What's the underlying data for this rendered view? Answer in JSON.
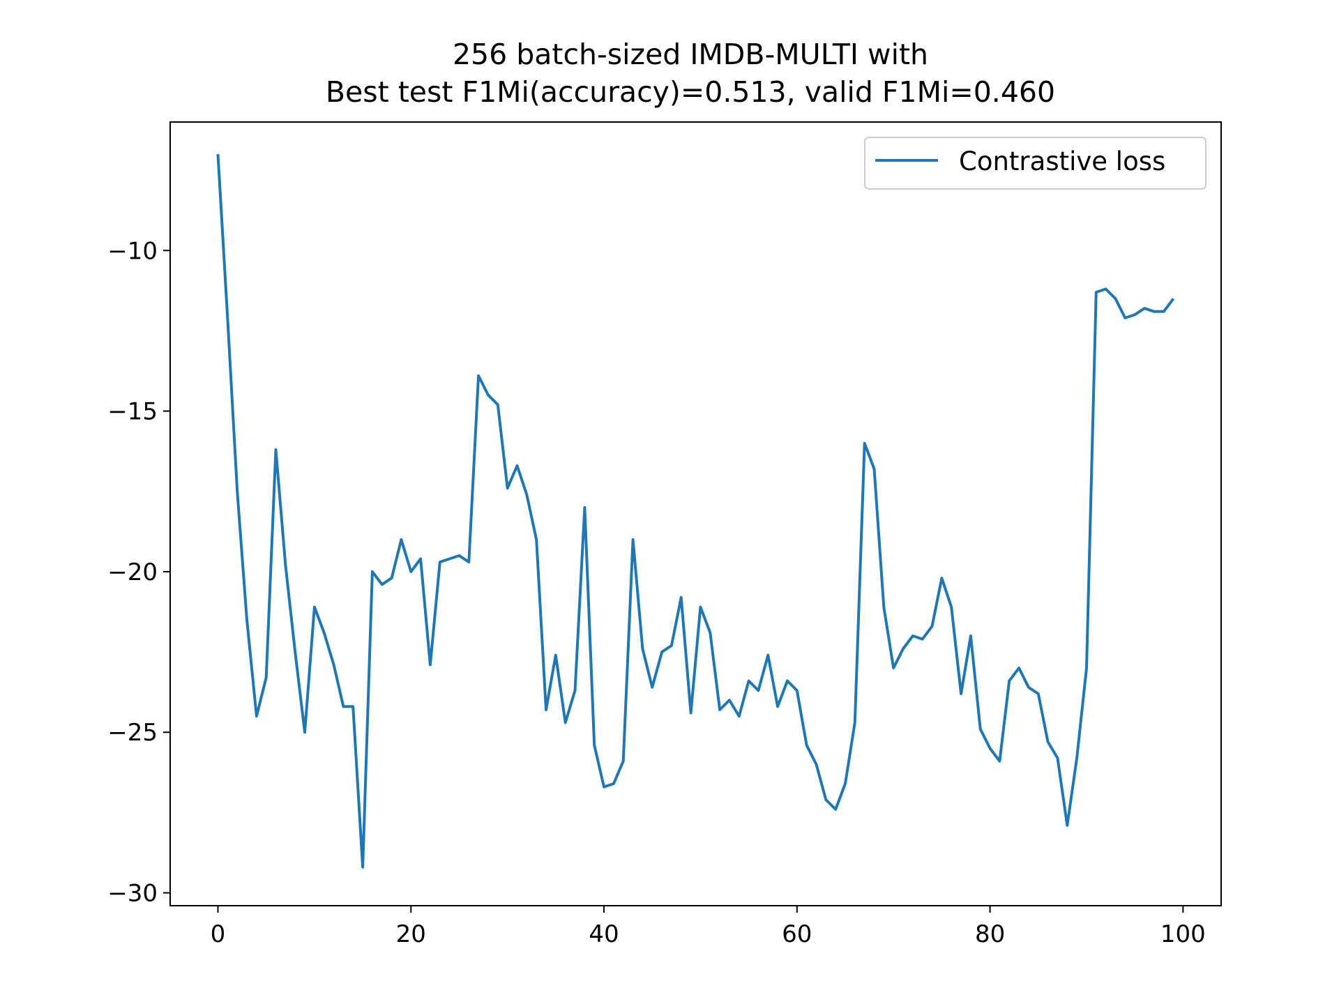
{
  "chart_data": {
    "type": "line",
    "title": "256 batch-sized IMDB-MULTI with\nBest test F1Mi(accuracy)=0.513, valid F1Mi=0.460",
    "title_lines": [
      "256 batch-sized IMDB-MULTI with",
      "Best test F1Mi(accuracy)=0.513, valid F1Mi=0.460"
    ],
    "xlabel": "",
    "ylabel": "",
    "xlim": [
      -4.95,
      103.95
    ],
    "ylim": [
      -30.4,
      -6.0
    ],
    "xticks": [
      0,
      20,
      40,
      60,
      80,
      100
    ],
    "yticks": [
      -30,
      -25,
      -20,
      -15,
      -10
    ],
    "grid": false,
    "legend": {
      "placement": "upper right",
      "entries": [
        "Contrastive loss"
      ]
    },
    "colors": {
      "series": "#1f77b4",
      "axes": "#000000",
      "legend_border": "#cccccc"
    },
    "series": [
      {
        "name": "Contrastive loss",
        "x": [
          0,
          1,
          2,
          3,
          4,
          5,
          6,
          7,
          8,
          9,
          10,
          11,
          12,
          13,
          14,
          15,
          16,
          17,
          18,
          19,
          20,
          21,
          22,
          23,
          24,
          25,
          26,
          27,
          28,
          29,
          30,
          31,
          32,
          33,
          34,
          35,
          36,
          37,
          38,
          39,
          40,
          41,
          42,
          43,
          44,
          45,
          46,
          47,
          48,
          49,
          50,
          51,
          52,
          53,
          54,
          55,
          56,
          57,
          58,
          59,
          60,
          61,
          62,
          63,
          64,
          65,
          66,
          67,
          68,
          69,
          70,
          71,
          72,
          73,
          74,
          75,
          76,
          77,
          78,
          79,
          80,
          81,
          82,
          83,
          84,
          85,
          86,
          87,
          88,
          89,
          90,
          91,
          92,
          93,
          94,
          95,
          96,
          97,
          98,
          99
        ],
        "y": [
          -7.0,
          -12.1,
          -17.5,
          -21.5,
          -24.5,
          -23.3,
          -16.2,
          -19.8,
          -22.5,
          -25.0,
          -21.1,
          -21.9,
          -22.9,
          -24.2,
          -24.2,
          -29.2,
          -20.0,
          -20.4,
          -20.2,
          -19.0,
          -20.0,
          -19.6,
          -22.9,
          -19.7,
          -19.6,
          -19.5,
          -19.7,
          -13.9,
          -14.5,
          -14.8,
          -17.4,
          -16.7,
          -17.6,
          -19.0,
          -24.3,
          -22.6,
          -24.7,
          -23.7,
          -18.0,
          -25.4,
          -26.7,
          -26.6,
          -25.9,
          -19.0,
          -22.4,
          -23.6,
          -22.5,
          -22.3,
          -20.8,
          -24.4,
          -21.1,
          -21.9,
          -24.3,
          -24.0,
          -24.5,
          -23.4,
          -23.7,
          -22.6,
          -24.2,
          -23.4,
          -23.7,
          -25.4,
          -26.0,
          -27.1,
          -27.4,
          -26.6,
          -24.7,
          -16.0,
          -16.8,
          -21.1,
          -23.0,
          -22.4,
          -22.0,
          -22.1,
          -21.7,
          -20.2,
          -21.1,
          -23.8,
          -22.0,
          -24.9,
          -25.5,
          -25.9,
          -23.4,
          -23.0,
          -23.6,
          -23.8,
          -25.3,
          -25.8,
          -27.9,
          -25.8,
          -23.0,
          -11.3,
          -11.2,
          -11.5,
          -12.1,
          -12.0,
          -11.8,
          -11.9,
          -11.9,
          -11.5
        ]
      }
    ]
  }
}
